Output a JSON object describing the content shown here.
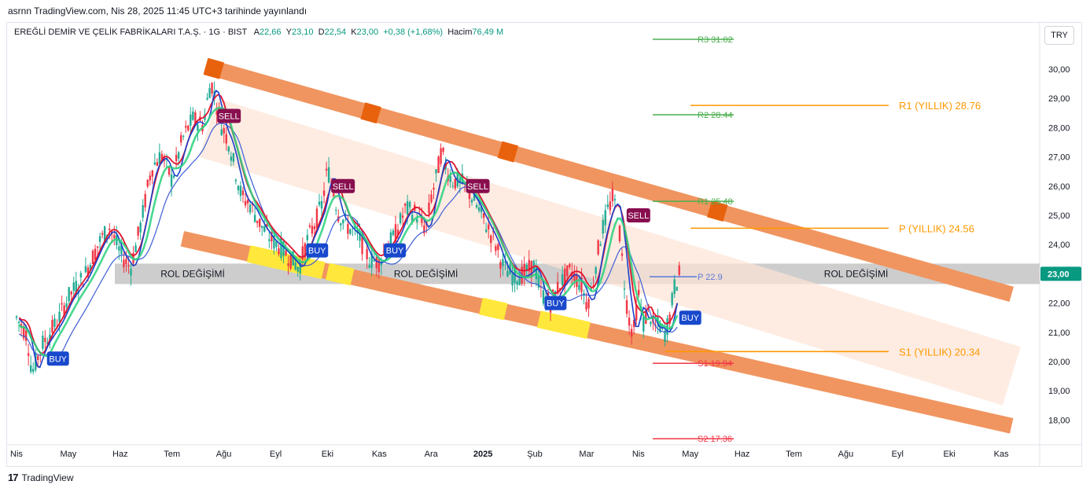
{
  "published": "asrnn TradingView.com, Nis 28, 2025 11:45 UTC+3 tarihinde yayınlandı",
  "header": {
    "symbol": "EREĞLİ DEMİR VE ÇELİK FABRİKALARI T.A.Ş. · 1G · BIST",
    "open_label": "A",
    "open": "22,66",
    "high_label": "Y",
    "high": "23,10",
    "low_label": "D",
    "low": "22,54",
    "close_label": "K",
    "close": "23,00",
    "change": "+0,38 (+1,68%)",
    "volume_label": "Hacim",
    "volume": "76,49 M"
  },
  "currency": "TRY",
  "footer_brand": "TradingView",
  "colors": {
    "channel": "#f0955f",
    "channel_mark": "#e8620e",
    "zone_yellow": "#ffe83b",
    "inner_channel": "#fde4d6",
    "rol_band": "#c4c4c4",
    "up_candle": "#22ab94",
    "down_candle": "#f23645",
    "buy": "#1848cc",
    "sell": "#880e4f",
    "yearly_level": "#ff9800",
    "r_level": "#4caf50",
    "s_level": "#f23645",
    "p_level": "#5b7ad8",
    "price_tag": "#089981"
  },
  "chart_data": {
    "type": "candlestick",
    "ylim": [
      17.3,
      31.2
    ],
    "y_ticks": [
      "30,00",
      "29,00",
      "28,00",
      "27,00",
      "26,00",
      "25,00",
      "24,00",
      "23,00",
      "22,00",
      "21,00",
      "20,00",
      "19,00",
      "18,00"
    ],
    "y_tick_values": [
      30,
      29,
      28,
      27,
      26,
      25,
      24,
      23,
      22,
      21,
      20,
      19,
      18
    ],
    "x_ticks": [
      "Nis",
      "May",
      "Haz",
      "Tem",
      "Ağu",
      "Eyl",
      "Eki",
      "Kas",
      "Ara",
      "2025",
      "Şub",
      "Mar",
      "Nis",
      "May",
      "Haz",
      "Tem",
      "Ağu",
      "Eyl",
      "Eki",
      "Kas"
    ],
    "x_tick_months": [
      0,
      1,
      2,
      3,
      4,
      5,
      6,
      7,
      8,
      9,
      10,
      11,
      12,
      13,
      14,
      15,
      16,
      17,
      18,
      19
    ],
    "last_price": "23,00",
    "last_price_value": 23.0,
    "price_path": [
      [
        0.0,
        21.5
      ],
      [
        0.2,
        20.9
      ],
      [
        0.3,
        19.6
      ],
      [
        0.5,
        20.6
      ],
      [
        0.8,
        21.4
      ],
      [
        1.0,
        22.2
      ],
      [
        1.3,
        22.9
      ],
      [
        1.6,
        24.1
      ],
      [
        1.8,
        24.6
      ],
      [
        2.0,
        23.7
      ],
      [
        2.2,
        23.2
      ],
      [
        2.4,
        24.7
      ],
      [
        2.6,
        26.6
      ],
      [
        2.8,
        27.1
      ],
      [
        3.0,
        26.2
      ],
      [
        3.2,
        27.6
      ],
      [
        3.4,
        28.3
      ],
      [
        3.6,
        28.1
      ],
      [
        3.75,
        29.6
      ],
      [
        3.85,
        28.9
      ],
      [
        3.95,
        28.1
      ],
      [
        4.1,
        27.5
      ],
      [
        4.2,
        26.7
      ],
      [
        4.35,
        25.6
      ],
      [
        4.5,
        25.4
      ],
      [
        4.7,
        24.7
      ],
      [
        4.9,
        24.2
      ],
      [
        5.1,
        23.9
      ],
      [
        5.3,
        23.5
      ],
      [
        5.45,
        23.2
      ],
      [
        5.6,
        24.1
      ],
      [
        5.75,
        24.7
      ],
      [
        5.9,
        25.4
      ],
      [
        6.0,
        26.6
      ],
      [
        6.1,
        26.0
      ],
      [
        6.2,
        25.1
      ],
      [
        6.4,
        24.6
      ],
      [
        6.6,
        24.3
      ],
      [
        6.8,
        23.5
      ],
      [
        7.0,
        23.4
      ],
      [
        7.1,
        23.8
      ],
      [
        7.3,
        24.3
      ],
      [
        7.5,
        25.2
      ],
      [
        7.7,
        25.1
      ],
      [
        7.9,
        24.5
      ],
      [
        8.0,
        25.6
      ],
      [
        8.1,
        26.3
      ],
      [
        8.2,
        27.2
      ],
      [
        8.3,
        26.6
      ],
      [
        8.4,
        26.2
      ],
      [
        8.6,
        26.1
      ],
      [
        8.8,
        25.6
      ],
      [
        9.0,
        24.9
      ],
      [
        9.2,
        24.2
      ],
      [
        9.4,
        23.2
      ],
      [
        9.6,
        22.9
      ],
      [
        9.8,
        23.0
      ],
      [
        10.0,
        23.3
      ],
      [
        10.1,
        22.4
      ],
      [
        10.3,
        22.0
      ],
      [
        10.5,
        22.7
      ],
      [
        10.7,
        23.1
      ],
      [
        10.9,
        22.6
      ],
      [
        11.0,
        22.0
      ],
      [
        11.1,
        22.4
      ],
      [
        11.2,
        23.6
      ],
      [
        11.3,
        24.5
      ],
      [
        11.4,
        25.1
      ],
      [
        11.5,
        25.6
      ],
      [
        11.6,
        25.1
      ],
      [
        11.7,
        23.2
      ],
      [
        11.8,
        21.6
      ],
      [
        11.9,
        20.9
      ],
      [
        12.0,
        22.3
      ],
      [
        12.1,
        21.3
      ],
      [
        12.2,
        21.8
      ],
      [
        12.3,
        21.1
      ],
      [
        12.4,
        21.3
      ],
      [
        12.5,
        20.9
      ],
      [
        12.6,
        21.5
      ],
      [
        12.7,
        22.6
      ],
      [
        12.8,
        23.0
      ]
    ],
    "signals": [
      {
        "label": "BUY",
        "month": 0.8,
        "value": 20.1
      },
      {
        "label": "SELL",
        "month": 4.1,
        "value": 28.4
      },
      {
        "label": "SELL",
        "month": 6.3,
        "value": 26.0
      },
      {
        "label": "BUY",
        "month": 5.8,
        "value": 23.8
      },
      {
        "label": "BUY",
        "month": 7.3,
        "value": 23.8
      },
      {
        "label": "SELL",
        "month": 8.9,
        "value": 26.0
      },
      {
        "label": "BUY",
        "month": 10.4,
        "value": 22.0
      },
      {
        "label": "SELL",
        "month": 12.0,
        "value": 25.0
      },
      {
        "label": "BUY",
        "month": 13.0,
        "value": 21.5
      }
    ],
    "levels_left": [
      {
        "label": "R3",
        "value": 31.02,
        "text": "31.02",
        "group": "r"
      },
      {
        "label": "R2",
        "value": 28.44,
        "text": "28.44",
        "group": "r"
      },
      {
        "label": "R1",
        "value": 25.48,
        "text": "25.48",
        "group": "r"
      },
      {
        "label": "P",
        "value": 22.9,
        "text": "22.9",
        "group": "p"
      },
      {
        "label": "S1",
        "value": 19.94,
        "text": "19.94",
        "group": "s"
      },
      {
        "label": "S2",
        "value": 17.36,
        "text": "17.36",
        "group": "s"
      }
    ],
    "levels_yearly": [
      {
        "label": "R1 (YILLIK) 28.76",
        "value": 28.76
      },
      {
        "label": "P (YILLIK) 24.56",
        "value": 24.56
      },
      {
        "label": "S1  (YILLIK) 20.34",
        "value": 20.34
      }
    ],
    "rol_band": {
      "from": 22.65,
      "to": 23.35,
      "labels": [
        "ROL DEĞİŞİMİ",
        "ROL DEĞİŞİMİ",
        "ROL DEĞİŞİMİ"
      ],
      "label_months": [
        3.4,
        7.9,
        16.2
      ]
    },
    "channel_upper": {
      "start": [
        3.65,
        30.1
      ],
      "end": [
        19.2,
        22.3
      ]
    },
    "channel_lower": {
      "start": [
        3.2,
        24.2
      ],
      "end": [
        19.2,
        17.8
      ]
    },
    "inner_channel": {
      "start": [
        3.7,
        28.0
      ],
      "end": [
        19.2,
        19.5
      ]
    }
  }
}
